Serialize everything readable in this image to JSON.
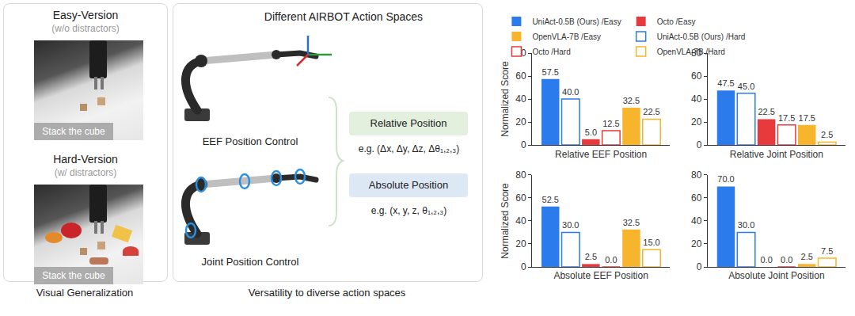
{
  "panels": {
    "visual": {
      "caption": "Visual Generalization",
      "easy": {
        "title": "Easy-Version",
        "subtitle": "(w/o distractors)",
        "instruction": "Stack the cube"
      },
      "hard": {
        "title": "Hard-Version",
        "subtitle": "(w/ distractors)",
        "instruction": "Stack the cube"
      }
    },
    "action_spaces": {
      "caption": "Versatility to diverse action spaces",
      "title": "Different AIRBOT Action Spaces",
      "controls": [
        "EEF Position Control",
        "Joint Position Control"
      ],
      "relative": {
        "label": "Relative Position",
        "example": "e.g. (Δx, Δy, Δz, Δθ₁,₂,₃)"
      },
      "absolute": {
        "label": "Absolute Position",
        "example": "e.g. (x, y, z, θ₁,₂,₃)"
      }
    }
  },
  "chart_data": [
    {
      "type": "bar",
      "categories": [
        "Relative EEF Position"
      ],
      "y_label": "Normalized Score",
      "ylim": [
        0,
        80
      ],
      "yticks": [
        0,
        20,
        40,
        60,
        80
      ],
      "grid": false,
      "data_labels": true,
      "legend": "top",
      "series": [
        {
          "name": "UniAct-0.5B (Ours) /Easy",
          "color": "#2b7bec",
          "marker": "filled",
          "values": [
            57.5
          ],
          "value_labels": [
            "57.5"
          ]
        },
        {
          "name": "UniAct-0.5B (Ours) /Hard",
          "color": "#2b7bec",
          "marker": "hollow",
          "values": [
            40.0
          ],
          "value_labels": [
            "40.0"
          ]
        },
        {
          "name": "Octo /Easy",
          "color": "#e83a3d",
          "marker": "filled",
          "values": [
            5.0
          ],
          "value_labels": [
            "5.0"
          ]
        },
        {
          "name": "Octo /Hard",
          "color": "#e83a3d",
          "marker": "hollow",
          "values": [
            12.5
          ],
          "value_labels": [
            "12.5"
          ]
        },
        {
          "name": "OpenVLA-7B /Easy",
          "color": "#f7b52d",
          "marker": "filled",
          "values": [
            32.5
          ],
          "value_labels": [
            "32.5"
          ]
        },
        {
          "name": "OpenVLA-7B /Hard",
          "color": "#f7b52d",
          "marker": "hollow",
          "values": [
            22.5
          ],
          "value_labels": [
            "22.5"
          ]
        }
      ]
    },
    {
      "type": "bar",
      "categories": [
        "Relative Joint Position"
      ],
      "ylim": [
        0,
        80
      ],
      "yticks": [
        0,
        20,
        40,
        60,
        80
      ],
      "grid": false,
      "data_labels": true,
      "series": [
        {
          "name": "UniAct-0.5B (Ours) /Easy",
          "color": "#2b7bec",
          "marker": "filled",
          "values": [
            47.5
          ],
          "value_labels": [
            "47.5"
          ]
        },
        {
          "name": "UniAct-0.5B (Ours) /Hard",
          "color": "#2b7bec",
          "marker": "hollow",
          "values": [
            45.0
          ],
          "value_labels": [
            "45.0"
          ]
        },
        {
          "name": "Octo /Easy",
          "color": "#e83a3d",
          "marker": "filled",
          "values": [
            22.5
          ],
          "value_labels": [
            "22.5"
          ]
        },
        {
          "name": "Octo /Hard",
          "color": "#e83a3d",
          "marker": "hollow",
          "values": [
            17.5
          ],
          "value_labels": [
            "17.5"
          ]
        },
        {
          "name": "OpenVLA-7B /Easy",
          "color": "#f7b52d",
          "marker": "filled",
          "values": [
            17.5
          ],
          "value_labels": [
            "17.5"
          ]
        },
        {
          "name": "OpenVLA-7B /Hard",
          "color": "#f7b52d",
          "marker": "hollow",
          "values": [
            2.5
          ],
          "value_labels": [
            "2.5"
          ]
        }
      ]
    },
    {
      "type": "bar",
      "categories": [
        "Absolute EEF Position"
      ],
      "y_label": "Normalized Score",
      "ylim": [
        0,
        80
      ],
      "yticks": [
        0,
        20,
        40,
        60,
        80
      ],
      "grid": false,
      "data_labels": true,
      "series": [
        {
          "name": "UniAct-0.5B (Ours) /Easy",
          "color": "#2b7bec",
          "marker": "filled",
          "values": [
            52.5
          ],
          "value_labels": [
            "52.5"
          ]
        },
        {
          "name": "UniAct-0.5B (Ours) /Hard",
          "color": "#2b7bec",
          "marker": "hollow",
          "values": [
            30.0
          ],
          "value_labels": [
            "30.0"
          ]
        },
        {
          "name": "Octo /Easy",
          "color": "#e83a3d",
          "marker": "filled",
          "values": [
            2.5
          ],
          "value_labels": [
            "2.5"
          ]
        },
        {
          "name": "Octo /Hard",
          "color": "#e83a3d",
          "marker": "hollow",
          "values": [
            0.0
          ],
          "value_labels": [
            "0.0"
          ]
        },
        {
          "name": "OpenVLA-7B /Easy",
          "color": "#f7b52d",
          "marker": "filled",
          "values": [
            32.5
          ],
          "value_labels": [
            "32.5"
          ]
        },
        {
          "name": "OpenVLA-7B /Hard",
          "color": "#f7b52d",
          "marker": "hollow",
          "values": [
            15.0
          ],
          "value_labels": [
            "15.0"
          ]
        }
      ]
    },
    {
      "type": "bar",
      "categories": [
        "Absolute Joint Position"
      ],
      "ylim": [
        0,
        80
      ],
      "yticks": [
        0,
        20,
        40,
        60,
        80
      ],
      "grid": false,
      "data_labels": true,
      "series": [
        {
          "name": "UniAct-0.5B (Ours) /Easy",
          "color": "#2b7bec",
          "marker": "filled",
          "values": [
            70.0
          ],
          "value_labels": [
            "70.0"
          ]
        },
        {
          "name": "UniAct-0.5B (Ours) /Hard",
          "color": "#2b7bec",
          "marker": "hollow",
          "values": [
            30.0
          ],
          "value_labels": [
            "30.0"
          ]
        },
        {
          "name": "Octo /Easy",
          "color": "#e83a3d",
          "marker": "filled",
          "values": [
            0.0
          ],
          "value_labels": [
            "0.0"
          ]
        },
        {
          "name": "Octo /Hard",
          "color": "#e83a3d",
          "marker": "hollow",
          "values": [
            0.0
          ],
          "value_labels": [
            "0.0"
          ]
        },
        {
          "name": "OpenVLA-7B /Easy",
          "color": "#f7b52d",
          "marker": "filled",
          "values": [
            2.5
          ],
          "value_labels": [
            "2.5"
          ]
        },
        {
          "name": "OpenVLA-7B /Hard",
          "color": "#f7b52d",
          "marker": "hollow",
          "values": [
            7.5
          ],
          "value_labels": [
            "7.5"
          ]
        }
      ]
    }
  ]
}
